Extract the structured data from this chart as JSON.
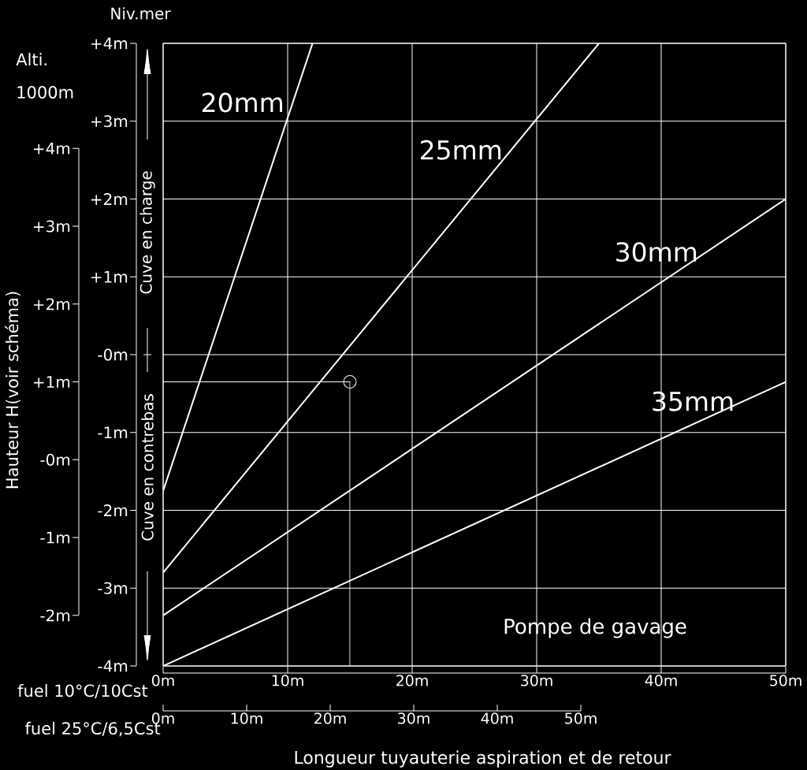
{
  "chart_data": {
    "type": "line",
    "ylabel": "Niv.mer",
    "y2label": "Hauteur H(voir schéma)",
    "xlabel": "Longueur tuyauterie aspiration et de retour",
    "annotations": [
      "Alti.",
      "1000m",
      "Cuve en charge",
      "Cuve en contrebas",
      "Pompe de gavage",
      "fuel 10°C/10Cst",
      "fuel 25°C/6,5Cst"
    ],
    "xlim": [
      0,
      50
    ],
    "xticks": [
      {
        "value": 0,
        "label": "0m"
      },
      {
        "value": 10,
        "label": "10m"
      },
      {
        "value": 20,
        "label": "20m"
      },
      {
        "value": 30,
        "label": "30m"
      },
      {
        "value": 40,
        "label": "40m"
      },
      {
        "value": 50,
        "label": "50m"
      }
    ],
    "x2lim": [
      0,
      50
    ],
    "x2ticks": [
      {
        "value": 0,
        "label": "0m"
      },
      {
        "value": 10,
        "label": "10m"
      },
      {
        "value": 20,
        "label": "20m"
      },
      {
        "value": 30,
        "label": "30m"
      },
      {
        "value": 40,
        "label": "40m"
      },
      {
        "value": 50,
        "label": "50m"
      }
    ],
    "ylim": [
      -4,
      4
    ],
    "yticks": [
      {
        "value": 4,
        "label": "+4m"
      },
      {
        "value": 3,
        "label": "+3m"
      },
      {
        "value": 2,
        "label": "+2m"
      },
      {
        "value": 1,
        "label": "+1m"
      },
      {
        "value": 0,
        "label": "-0m"
      },
      {
        "value": -1,
        "label": "-1m"
      },
      {
        "value": -2,
        "label": "-2m"
      },
      {
        "value": -3,
        "label": "-3m"
      },
      {
        "value": -4,
        "label": "-4m"
      }
    ],
    "y2lim": [
      -2,
      4
    ],
    "y2ticks": [
      {
        "value": 4,
        "label": "+4m"
      },
      {
        "value": 3,
        "label": "+3m"
      },
      {
        "value": 2,
        "label": "+2m"
      },
      {
        "value": 1,
        "label": "+1m"
      },
      {
        "value": 0,
        "label": "-0m"
      },
      {
        "value": -1,
        "label": "-1m"
      },
      {
        "value": -2,
        "label": "-2m"
      }
    ],
    "grid": true,
    "line_style": "solid",
    "marker": "none",
    "series": [
      {
        "name": "20mm",
        "color": "#ffffff",
        "x": [
          0,
          12
        ],
        "values": [
          -1.75,
          4
        ]
      },
      {
        "name": "25mm",
        "color": "#ffffff",
        "x": [
          0,
          35
        ],
        "values": [
          -2.8,
          4
        ]
      },
      {
        "name": "30mm",
        "color": "#ffffff",
        "x": [
          0,
          50
        ],
        "values": [
          -3.35,
          2
        ]
      },
      {
        "name": "35mm",
        "color": "#ffffff",
        "x": [
          0,
          50
        ],
        "values": [
          -4,
          -0.35
        ]
      },
      {
        "color": "#ffffff",
        "x": [
          0,
          15,
          15
        ],
        "values": [
          -0.35,
          -0.35,
          -4
        ]
      },
      {
        "type": "scatter",
        "marker": "circle",
        "color": "#ffffff",
        "x": [
          15
        ],
        "values": [
          -0.35
        ]
      }
    ]
  }
}
